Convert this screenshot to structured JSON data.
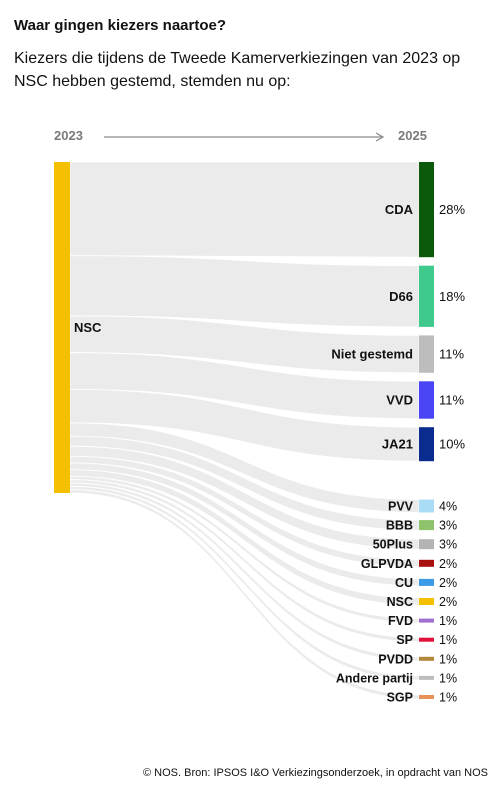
{
  "header": {
    "title": "Waar gingen kiezers naartoe?",
    "subtitle": "Kiezers die tijdens de Tweede Kamerverkiezingen van 2023 op NSC hebben gestemd, stemden nu op:"
  },
  "years": {
    "left": "2023",
    "right": "2025"
  },
  "footer": {
    "source": "© NOS. Bron: IPSOS I&O Verkiezingsonderzoek, in opdracht van NOS"
  },
  "chart_data": {
    "type": "sankey",
    "source": {
      "name": "NSC",
      "color": "#f5c000"
    },
    "flow_color": "#ebebeb",
    "targets": [
      {
        "name": "CDA",
        "value": 28,
        "label": "28%",
        "color": "#0b5a0b"
      },
      {
        "name": "D66",
        "value": 18,
        "label": "18%",
        "color": "#40c98d"
      },
      {
        "name": "Niet gestemd",
        "value": 11,
        "label": "11%",
        "color": "#bdbdbd"
      },
      {
        "name": "VVD",
        "value": 11,
        "label": "11%",
        "color": "#4a45f5"
      },
      {
        "name": "JA21",
        "value": 10,
        "label": "10%",
        "color": "#0a2c8f"
      },
      {
        "name": "PVV",
        "value": 4,
        "label": "4%",
        "color": "#a9dcf5"
      },
      {
        "name": "BBB",
        "value": 3,
        "label": "3%",
        "color": "#8ec26b"
      },
      {
        "name": "50Plus",
        "value": 3,
        "label": "3%",
        "color": "#b3b3b3"
      },
      {
        "name": "GLPVDA",
        "value": 2,
        "label": "2%",
        "color": "#a81010"
      },
      {
        "name": "CU",
        "value": 2,
        "label": "2%",
        "color": "#3b9be6"
      },
      {
        "name": "NSC",
        "value": 2,
        "label": "2%",
        "color": "#f5c000"
      },
      {
        "name": "FVD",
        "value": 1,
        "label": "1%",
        "color": "#a070d0"
      },
      {
        "name": "SP",
        "value": 1,
        "label": "1%",
        "color": "#e0103a"
      },
      {
        "name": "PVDD",
        "value": 1,
        "label": "1%",
        "color": "#b3873a"
      },
      {
        "name": "Andere partij",
        "value": 1,
        "label": "1%",
        "color": "#bdbdbd"
      },
      {
        "name": "SGP",
        "value": 1,
        "label": "1%",
        "color": "#e8925a"
      }
    ]
  }
}
